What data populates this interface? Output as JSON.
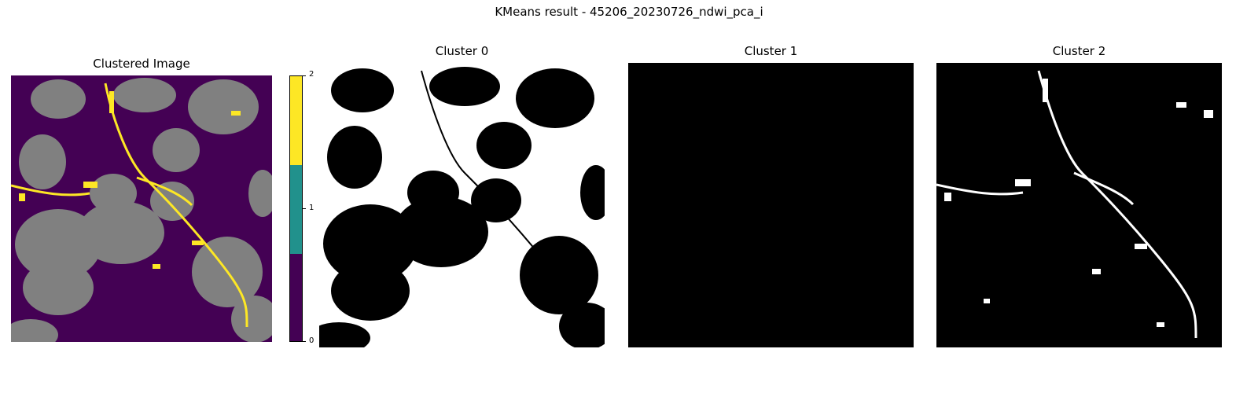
{
  "suptitle": "KMeans result - 45206_20230726_ndwi_pca_i",
  "panels": [
    {
      "title": "Clustered Image",
      "type": "label-map"
    },
    {
      "title": "Cluster 0",
      "type": "binary-mask"
    },
    {
      "title": "Cluster 1",
      "type": "binary-mask"
    },
    {
      "title": "Cluster 2",
      "type": "binary-mask"
    }
  ],
  "colorbar": {
    "ticks": [
      "0",
      "1",
      "2"
    ],
    "colors": [
      "#440154",
      "#21918c",
      "#fde725"
    ]
  },
  "cluster_colors": {
    "0": "#440154",
    "1": "#808080",
    "2": "#fde725"
  },
  "chart_data": {
    "type": "heatmap",
    "title": "KMeans result - 45206_20230726_ndwi_pca_i",
    "clusters": [
      0,
      1,
      2
    ],
    "colorbar_range": [
      0,
      2
    ],
    "axes": "off"
  }
}
